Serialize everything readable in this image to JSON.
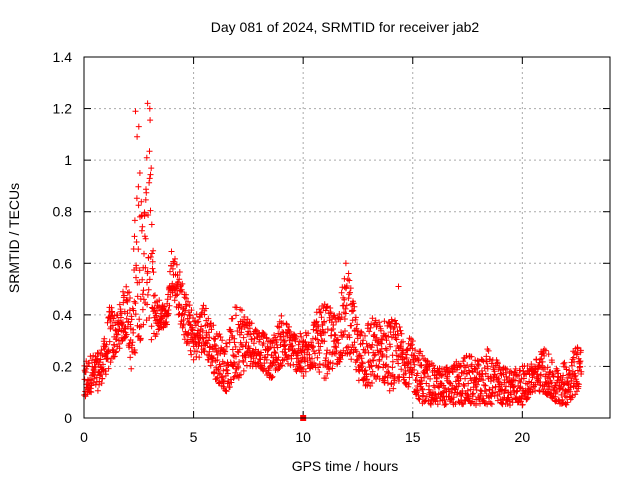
{
  "chart_data": {
    "type": "scatter",
    "title": "Day 081 of 2024, SRMTID for receiver jab2",
    "xlabel": "GPS time / hours",
    "ylabel": "SRMTID / TECUs",
    "xlim": [
      0,
      24
    ],
    "ylim": [
      0,
      1.4
    ],
    "xticks": [
      0,
      5,
      10,
      15,
      20
    ],
    "yticks": [
      0,
      0.2,
      0.4,
      0.6,
      0.8,
      1,
      1.2,
      1.4
    ],
    "ytick_labels": [
      "0",
      "0.2",
      "0.4",
      "0.6",
      "0.8",
      "1",
      "1.2",
      "1.4"
    ],
    "grid": true,
    "series": [
      {
        "name": "SRMTID",
        "color": "#ff0000",
        "marker": "plus",
        "envelope": [
          [
            0.0,
            0.05,
            0.2
          ],
          [
            0.3,
            0.1,
            0.25
          ],
          [
            0.6,
            0.1,
            0.25
          ],
          [
            0.9,
            0.15,
            0.3
          ],
          [
            1.2,
            0.2,
            0.45
          ],
          [
            1.5,
            0.25,
            0.4
          ],
          [
            1.8,
            0.3,
            0.5
          ],
          [
            2.0,
            0.3,
            0.55
          ],
          [
            2.2,
            0.15,
            0.4
          ],
          [
            2.4,
            0.3,
            1.2
          ],
          [
            2.6,
            0.3,
            0.85
          ],
          [
            2.8,
            0.4,
            0.9
          ],
          [
            3.0,
            0.3,
            1.23
          ],
          [
            3.2,
            0.3,
            0.5
          ],
          [
            3.5,
            0.35,
            0.45
          ],
          [
            3.8,
            0.35,
            0.45
          ],
          [
            4.0,
            0.5,
            0.68
          ],
          [
            4.3,
            0.4,
            0.6
          ],
          [
            4.6,
            0.3,
            0.5
          ],
          [
            5.0,
            0.22,
            0.4
          ],
          [
            5.5,
            0.25,
            0.45
          ],
          [
            6.0,
            0.15,
            0.35
          ],
          [
            6.5,
            0.1,
            0.3
          ],
          [
            7.0,
            0.15,
            0.48
          ],
          [
            7.5,
            0.2,
            0.4
          ],
          [
            8.0,
            0.2,
            0.35
          ],
          [
            8.5,
            0.15,
            0.3
          ],
          [
            9.0,
            0.2,
            0.4
          ],
          [
            9.5,
            0.2,
            0.35
          ],
          [
            10.0,
            0.15,
            0.32
          ],
          [
            10.5,
            0.2,
            0.4
          ],
          [
            11.0,
            0.15,
            0.45
          ],
          [
            11.5,
            0.2,
            0.4
          ],
          [
            12.0,
            0.25,
            0.6
          ],
          [
            12.5,
            0.15,
            0.35
          ],
          [
            13.0,
            0.1,
            0.4
          ],
          [
            13.5,
            0.15,
            0.38
          ],
          [
            14.0,
            0.1,
            0.4
          ],
          [
            14.5,
            0.15,
            0.35
          ],
          [
            15.0,
            0.1,
            0.3
          ],
          [
            15.5,
            0.05,
            0.25
          ],
          [
            16.0,
            0.05,
            0.2
          ],
          [
            16.5,
            0.05,
            0.2
          ],
          [
            17.0,
            0.05,
            0.22
          ],
          [
            17.5,
            0.05,
            0.25
          ],
          [
            18.0,
            0.05,
            0.22
          ],
          [
            18.5,
            0.05,
            0.28
          ],
          [
            19.0,
            0.05,
            0.2
          ],
          [
            19.5,
            0.05,
            0.2
          ],
          [
            20.0,
            0.05,
            0.2
          ],
          [
            20.5,
            0.1,
            0.22
          ],
          [
            21.0,
            0.1,
            0.28
          ],
          [
            21.5,
            0.05,
            0.2
          ],
          [
            22.0,
            0.05,
            0.22
          ],
          [
            22.5,
            0.1,
            0.3
          ],
          [
            22.7,
            0.15,
            0.28
          ]
        ],
        "extra_points": [
          [
            0.1,
            0.22
          ],
          [
            2.35,
            1.19
          ],
          [
            2.5,
            1.13
          ],
          [
            2.55,
            0.95
          ],
          [
            2.9,
            1.22
          ],
          [
            3.0,
            1.2
          ],
          [
            11.95,
            0.6
          ],
          [
            14.35,
            0.51
          ],
          [
            10.0,
            0.0
          ]
        ]
      }
    ]
  }
}
